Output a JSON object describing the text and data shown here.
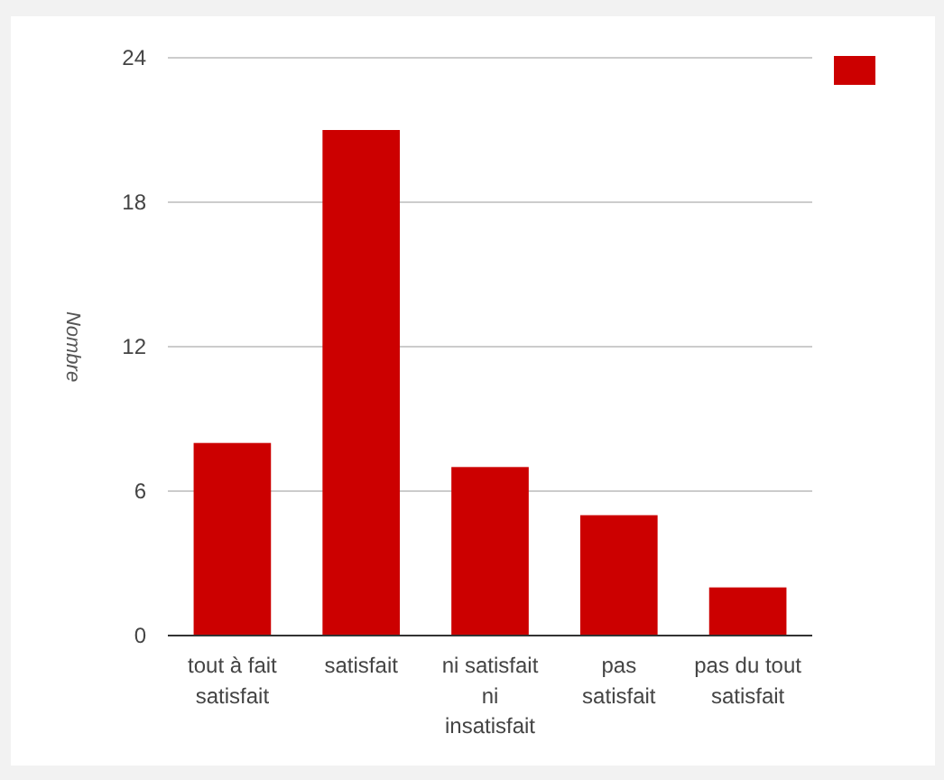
{
  "chart_data": {
    "type": "bar",
    "ylabel": "Nombre",
    "categories": [
      "tout à fait satisfait",
      "satisfait",
      "ni satisfait ni insatisfait",
      "pas satisfait",
      "pas du tout satisfait"
    ],
    "series": [
      {
        "color": "#cc0000",
        "values": [
          8,
          21,
          7,
          5,
          2
        ]
      }
    ],
    "ylim": [
      0,
      24
    ],
    "yticks": [
      0,
      6,
      12,
      18,
      24
    ],
    "grid": "y"
  }
}
